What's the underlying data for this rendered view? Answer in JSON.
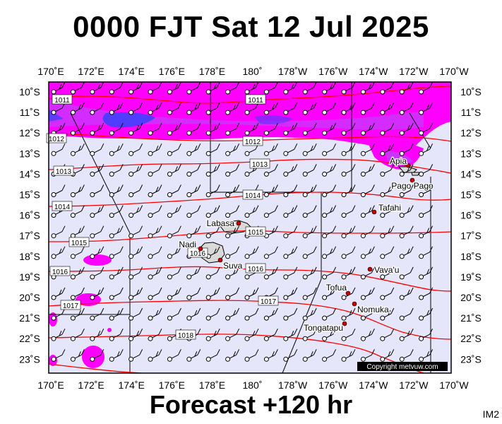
{
  "title": "0000 FJT Sat 12 Jul 2025",
  "footer": "Forecast +120 hr",
  "code": "IM2",
  "copyright": "Copyright metvuw.com",
  "lon_labels": [
    "170˚E",
    "172˚E",
    "174˚E",
    "176˚E",
    "178˚E",
    "180˚",
    "178˚W",
    "176˚W",
    "174˚W",
    "172˚W",
    "170˚W"
  ],
  "lat_labels": [
    "10˚S",
    "11˚S",
    "12˚S",
    "13˚S",
    "14˚S",
    "15˚S",
    "16˚S",
    "17˚S",
    "18˚S",
    "19˚S",
    "20˚S",
    "21˚S",
    "22˚S",
    "23˚S"
  ],
  "isobars": [
    {
      "label": "1011"
    },
    {
      "label": "1011"
    },
    {
      "label": "1012"
    },
    {
      "label": "1012"
    },
    {
      "label": "1013"
    },
    {
      "label": "1013"
    },
    {
      "label": "1014"
    },
    {
      "label": "1014"
    },
    {
      "label": "1015"
    },
    {
      "label": "1015"
    },
    {
      "label": "1016"
    },
    {
      "label": "1016"
    },
    {
      "label": "1016"
    },
    {
      "label": "1017"
    },
    {
      "label": "1017"
    },
    {
      "label": "1018"
    }
  ],
  "places": [
    {
      "name": "Apia"
    },
    {
      "name": "Pago Pago"
    },
    {
      "name": "Tafahi"
    },
    {
      "name": "Labasa"
    },
    {
      "name": "Nadi"
    },
    {
      "name": "Suva"
    },
    {
      "name": "Vava'u"
    },
    {
      "name": "Tofua"
    },
    {
      "name": "Nomuka"
    },
    {
      "name": "Tongatapu"
    }
  ],
  "colors": {
    "sea": "#e6e6fa",
    "rain_light": "#ff00ff",
    "rain_mid": "#cc33ff",
    "rain_heavy": "#4040ff",
    "isobar": "#ff0000",
    "land": "#d9d9d9"
  }
}
